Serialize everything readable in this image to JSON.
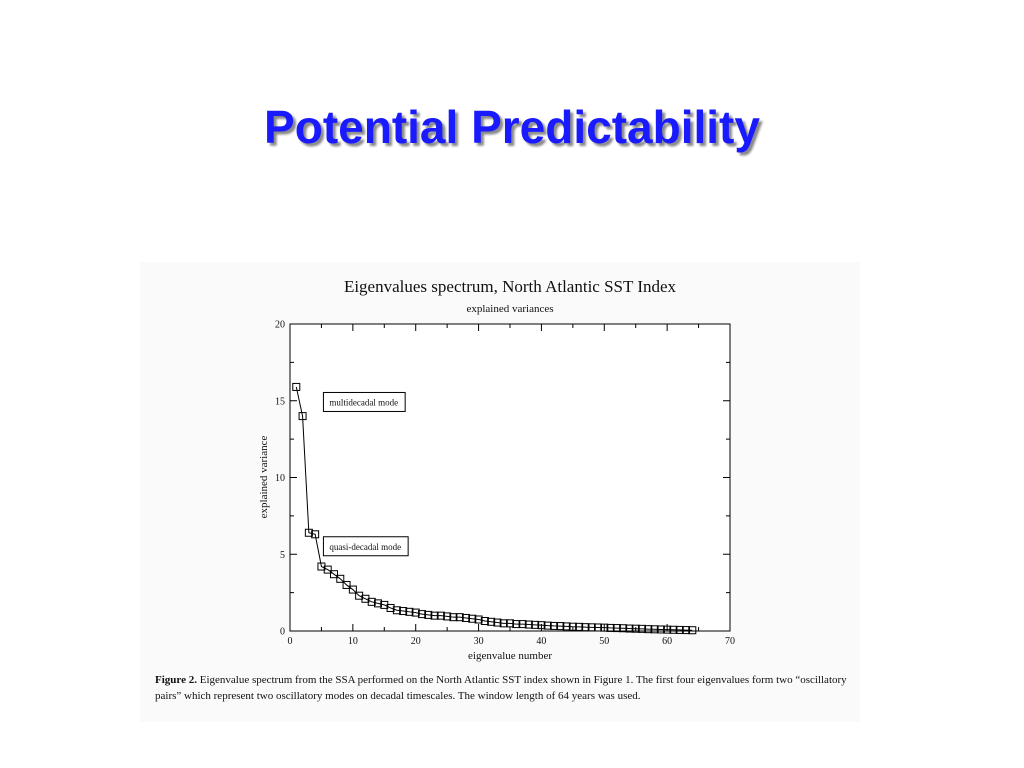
{
  "slide": {
    "title": "Potential Predictability"
  },
  "figure": {
    "caption_label": "Figure 2.",
    "caption_text": " Eigenvalue spectrum from the SSA performed on the North Atlantic SST index shown in Figure 1. The first four eigenvalues form two “oscillatory pairs” which represent two oscillatory modes on decadal timescales. The window length of 64 years was used."
  },
  "chart_data": {
    "type": "line",
    "title": "Eigenvalues spectrum, North Atlantic SST Index",
    "subtitle": "explained variances",
    "xlabel": "eigenvalue number",
    "ylabel": "explained  variance",
    "xlim": [
      0,
      70
    ],
    "ylim": [
      0,
      20
    ],
    "x_ticks": [
      0,
      10,
      20,
      30,
      40,
      50,
      60,
      70
    ],
    "y_ticks": [
      0,
      5,
      10,
      15,
      20
    ],
    "grid": false,
    "marker": "open-square",
    "annotations": [
      {
        "text": "multidecadal mode",
        "x": 5,
        "y": 15.8
      },
      {
        "text": "quasi-decadal mode",
        "x": 5,
        "y": 6.4
      }
    ],
    "series": [
      {
        "x": [
          1,
          2,
          3,
          4,
          5,
          6,
          7,
          8,
          9,
          10,
          11,
          12,
          13,
          14,
          15,
          16,
          17,
          18,
          19,
          20,
          21,
          22,
          23,
          24,
          25,
          26,
          27,
          28,
          29,
          30,
          31,
          32,
          33,
          34,
          35,
          36,
          37,
          38,
          39,
          40,
          41,
          42,
          43,
          44,
          45,
          46,
          47,
          48,
          49,
          50,
          51,
          52,
          53,
          54,
          55,
          56,
          57,
          58,
          59,
          60,
          61,
          62,
          63,
          64
        ],
        "y": [
          15.9,
          14.0,
          6.4,
          6.3,
          4.2,
          4.0,
          3.7,
          3.4,
          3.0,
          2.7,
          2.3,
          2.1,
          1.9,
          1.8,
          1.7,
          1.5,
          1.35,
          1.3,
          1.25,
          1.2,
          1.1,
          1.05,
          1.0,
          1.0,
          0.95,
          0.9,
          0.9,
          0.85,
          0.8,
          0.75,
          0.65,
          0.6,
          0.55,
          0.5,
          0.5,
          0.45,
          0.45,
          0.42,
          0.4,
          0.38,
          0.35,
          0.33,
          0.32,
          0.3,
          0.28,
          0.27,
          0.25,
          0.24,
          0.23,
          0.22,
          0.2,
          0.19,
          0.18,
          0.16,
          0.15,
          0.14,
          0.12,
          0.11,
          0.1,
          0.09,
          0.08,
          0.07,
          0.06,
          0.05
        ]
      }
    ]
  }
}
